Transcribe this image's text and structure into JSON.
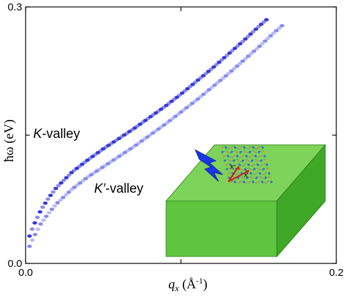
{
  "chart_data": {
    "type": "scatter",
    "xlabel": "q_x (Å^-1)",
    "xlabel_parts": {
      "symbol": "q",
      "sub": "x",
      "unit_open": " (Å",
      "unit_sup": "-1",
      "unit_close": ")"
    },
    "ylabel": "ħω (eV)",
    "xlim": [
      0.0,
      0.2
    ],
    "ylim": [
      0.0,
      0.3
    ],
    "x_ticks": [
      {
        "value": 0.0,
        "label": "0.0"
      },
      {
        "value": 0.1,
        "label": ""
      },
      {
        "value": 0.2,
        "label": "0.2"
      }
    ],
    "y_ticks": [
      {
        "value": 0.0,
        "label": "0.0"
      },
      {
        "value": 0.15,
        "label": ""
      },
      {
        "value": 0.3,
        "label": "0.3"
      }
    ],
    "grid": false,
    "annotations": [
      {
        "id": "k-valley",
        "text_italic": "K",
        "text": "-valley"
      },
      {
        "id": "kp-valley",
        "text_italic": "K′",
        "text": "-valley"
      }
    ],
    "inset": {
      "labels": [
        "K′",
        "K"
      ],
      "colors": {
        "top": "#7ed35a",
        "front": "#5ec63e",
        "side": "#3fa826",
        "arrow": "#cc2222",
        "bolt": "#1a36e6"
      }
    },
    "series": [
      {
        "color": "#2b2fd6",
        "x": [
          0.0025,
          0.005,
          0.01,
          0.015,
          0.02,
          0.03,
          0.04,
          0.05,
          0.06,
          0.07,
          0.08,
          0.09,
          0.1,
          0.11,
          0.12,
          0.13,
          0.14,
          0.15,
          0.155
        ],
        "y": [
          0.032,
          0.044,
          0.063,
          0.077,
          0.089,
          0.107,
          0.121,
          0.134,
          0.146,
          0.158,
          0.171,
          0.184,
          0.198,
          0.213,
          0.228,
          0.244,
          0.26,
          0.277,
          0.285
        ]
      },
      {
        "color": "#7f86ec",
        "x": [
          0.0025,
          0.005,
          0.01,
          0.015,
          0.02,
          0.03,
          0.04,
          0.05,
          0.06,
          0.07,
          0.08,
          0.09,
          0.1,
          0.11,
          0.12,
          0.13,
          0.14,
          0.15,
          0.16,
          0.165
        ],
        "y": [
          0.02,
          0.03,
          0.047,
          0.059,
          0.07,
          0.087,
          0.101,
          0.113,
          0.125,
          0.137,
          0.15,
          0.163,
          0.177,
          0.191,
          0.206,
          0.221,
          0.237,
          0.253,
          0.27,
          0.278
        ]
      }
    ]
  }
}
